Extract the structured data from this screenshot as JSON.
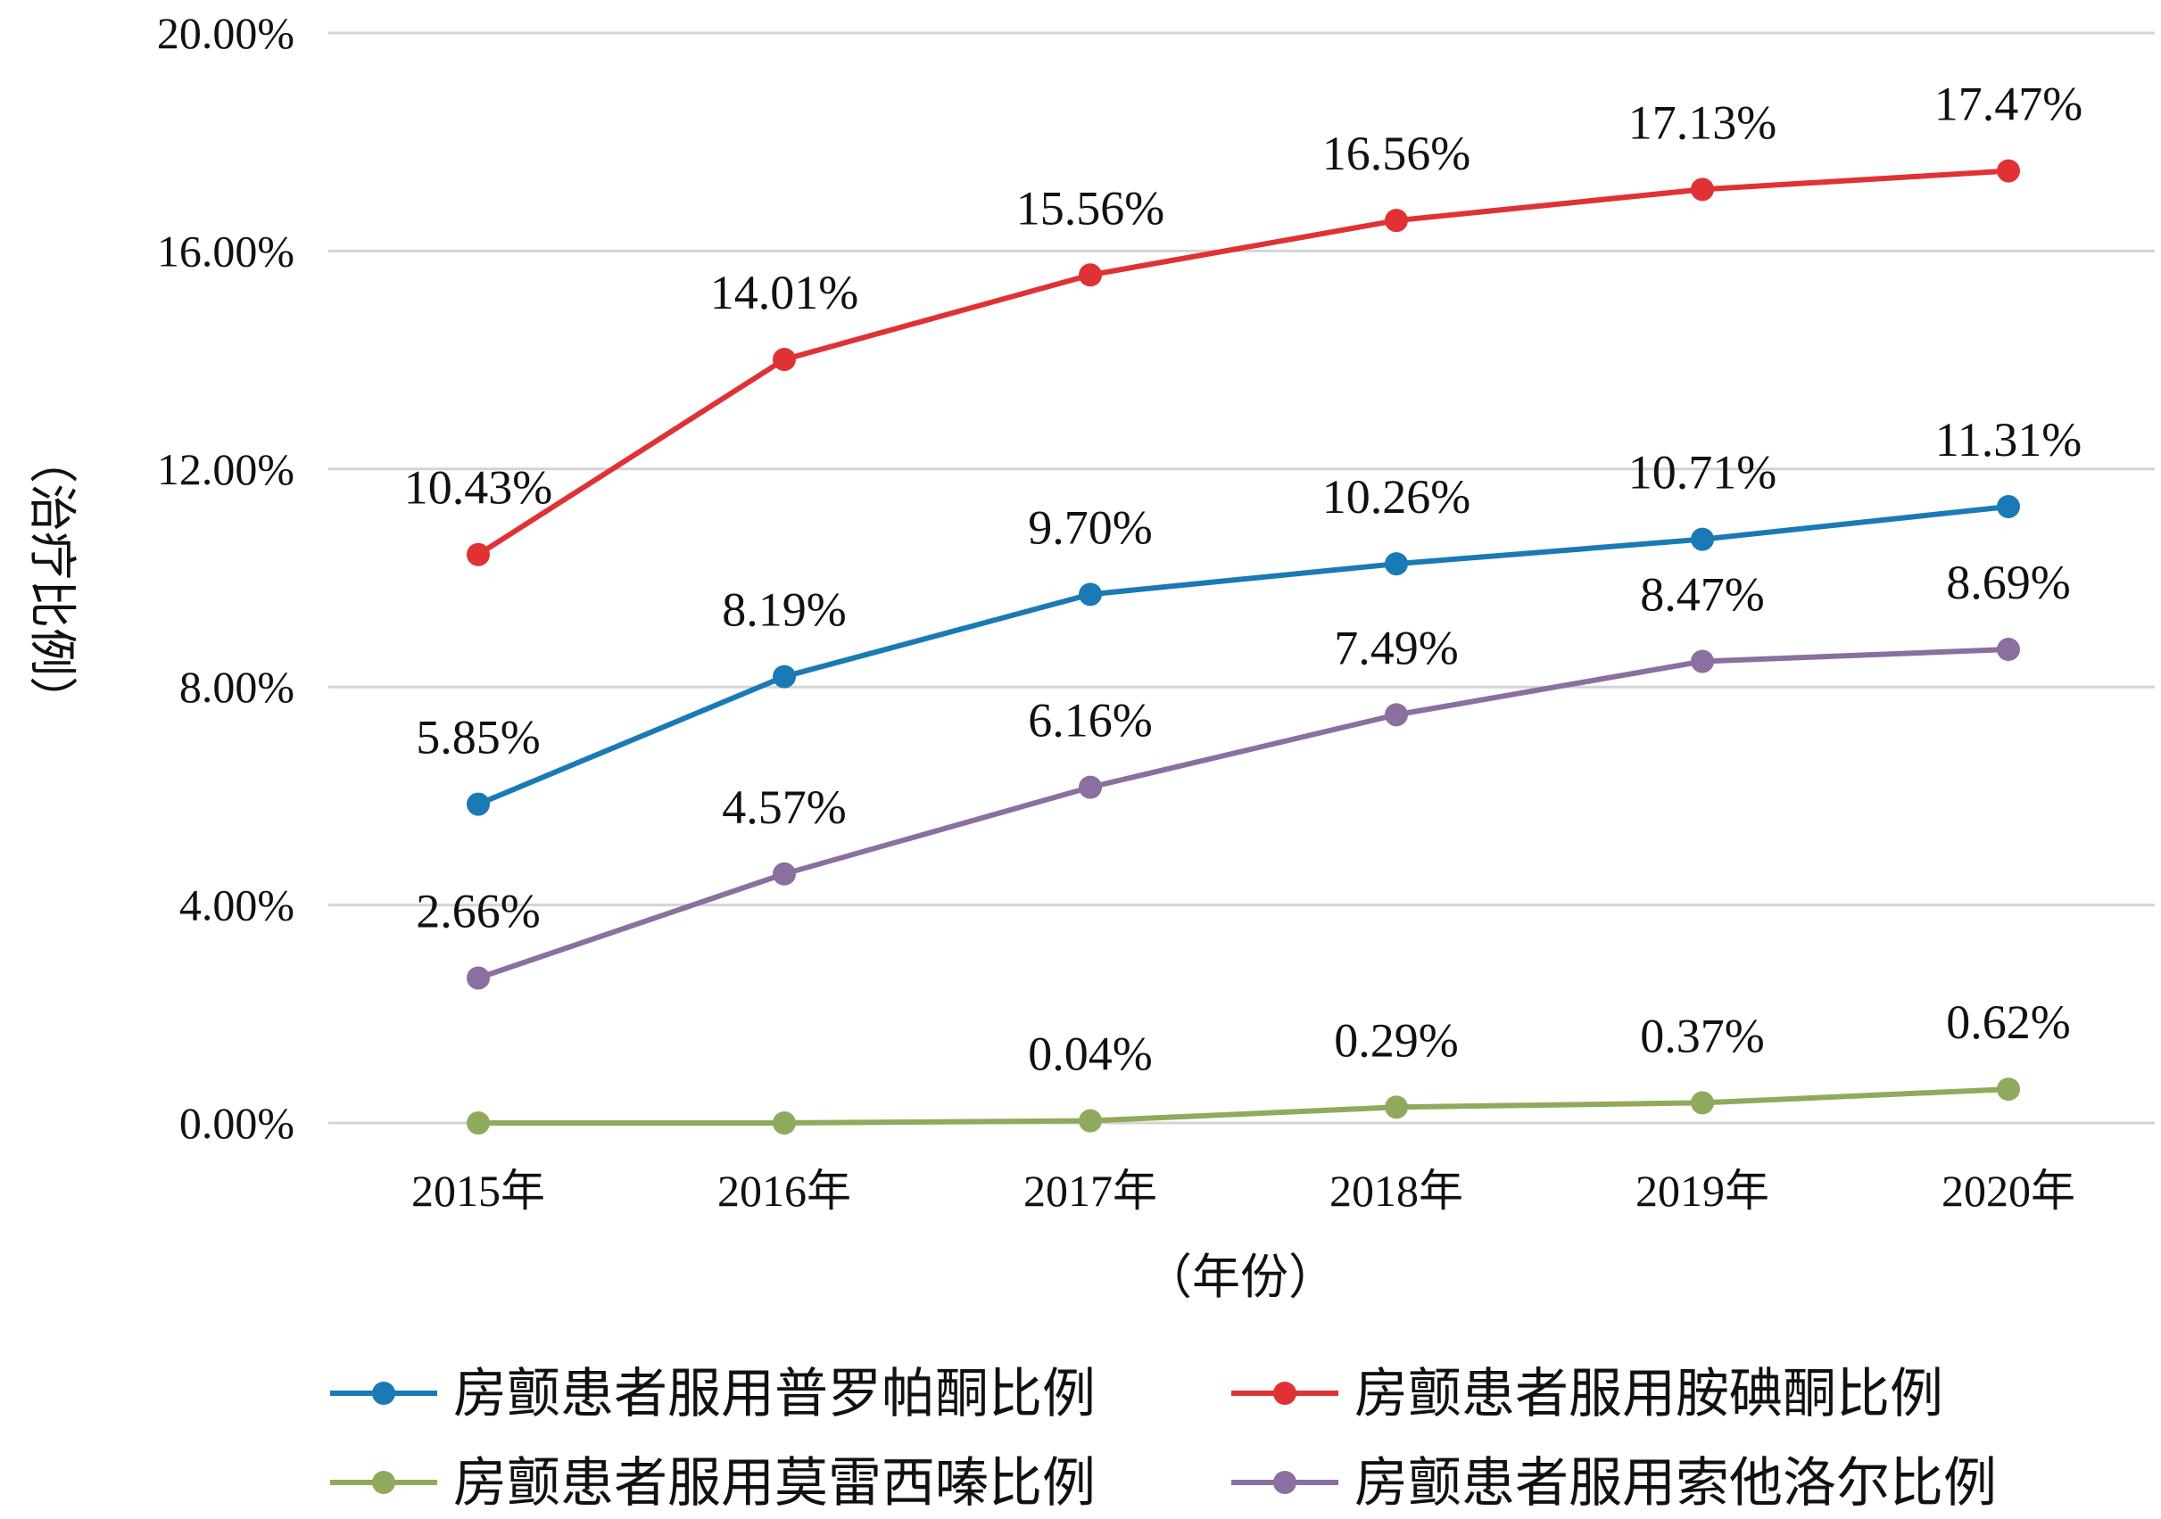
{
  "chart_data": {
    "type": "line",
    "title": "",
    "xlabel": "（年份）",
    "ylabel": "（治疗比例）",
    "categories": [
      "2015年",
      "2016年",
      "2017年",
      "2018年",
      "2019年",
      "2020年"
    ],
    "ylim": [
      0,
      20
    ],
    "yticks": [
      "0.00%",
      "4.00%",
      "8.00%",
      "12.00%",
      "16.00%",
      "20.00%"
    ],
    "grid": true,
    "legend_position": "bottom",
    "series": [
      {
        "name": "房颤患者服用普罗帕酮比例",
        "color": "#1a7ab5",
        "values": [
          5.85,
          8.19,
          9.7,
          10.26,
          10.71,
          11.31
        ],
        "labels": [
          "5.85%",
          "8.19%",
          "9.70%",
          "10.26%",
          "10.71%",
          "11.31%"
        ]
      },
      {
        "name": "房颤患者服用胺碘酮比例",
        "color": "#e03234",
        "values": [
          10.43,
          14.01,
          15.56,
          16.56,
          17.13,
          17.47
        ],
        "labels": [
          "10.43%",
          "14.01%",
          "15.56%",
          "16.56%",
          "17.13%",
          "17.47%"
        ]
      },
      {
        "name": "房颤患者服用莫雷西嗪比例",
        "color": "#8faa5c",
        "values": [
          0.0,
          0.0,
          0.04,
          0.29,
          0.37,
          0.62
        ],
        "labels": [
          "",
          "",
          "0.04%",
          "0.29%",
          "0.37%",
          "0.62%"
        ]
      },
      {
        "name": "房颤患者服用索他洛尔比例",
        "color": "#8b6f9e",
        "values": [
          2.66,
          4.57,
          6.16,
          7.49,
          8.47,
          8.69
        ],
        "labels": [
          "2.66%",
          "4.57%",
          "6.16%",
          "7.49%",
          "8.47%",
          "8.69%"
        ]
      }
    ]
  }
}
